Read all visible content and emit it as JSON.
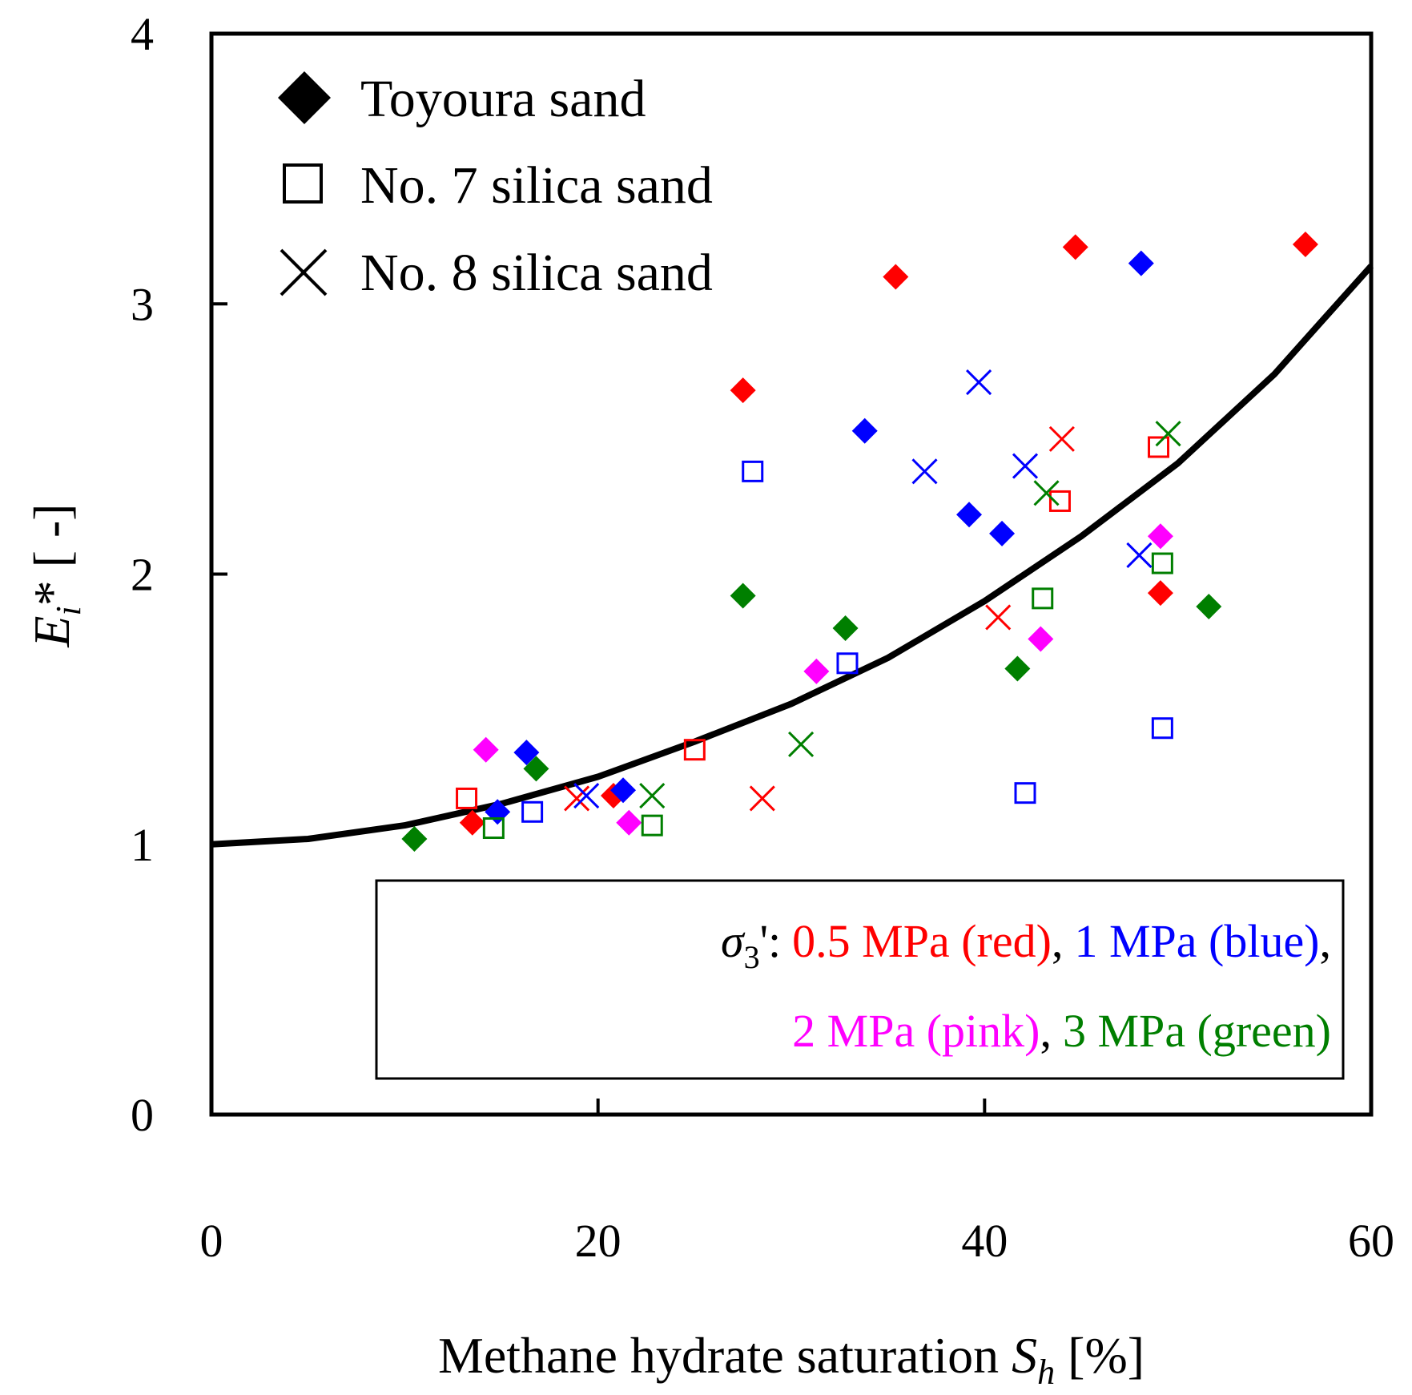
{
  "chart_data": {
    "type": "scatter",
    "xlabel": "Methane hydrate saturation",
    "xlabel_symbol": "S",
    "xlabel_subscript": "h",
    "xlabel_unit": "[%]",
    "ylabel_symbol": "E",
    "ylabel_subscript": "i",
    "ylabel_suffix": "*",
    "ylabel_unit": "[ -]",
    "xlim": [
      0,
      60
    ],
    "ylim": [
      0,
      4
    ],
    "xticks": [
      0,
      20,
      40,
      60
    ],
    "xtick_labels": [
      "0",
      "20",
      "40",
      "60"
    ],
    "yticks": [
      0,
      1,
      2,
      3,
      4
    ],
    "ytick_labels": [
      "0",
      "1",
      "2",
      "3",
      "4"
    ],
    "legend": [
      {
        "marker": "diamond",
        "label": "Toyoura sand"
      },
      {
        "marker": "square",
        "label": "No. 7 silica sand"
      },
      {
        "marker": "cross",
        "label": "No. 8 silica sand"
      }
    ],
    "note": {
      "prefix": "σ",
      "prefix_subscript": "3",
      "prefix_suffix": "':",
      "lines": [
        [
          {
            "text": "0.5 MPa (red)",
            "color": "#ff0000"
          },
          {
            "text": ",",
            "color": "#000000"
          },
          {
            "text": "1 MPa (blue)",
            "color": "#0000ff"
          },
          {
            "text": ",",
            "color": "#000000"
          }
        ],
        [
          {
            "text": "2 MPa (pink)",
            "color": "#ff00ff"
          },
          {
            "text": ",",
            "color": "#000000"
          },
          {
            "text": "3 MPa (green)",
            "color": "#007f00"
          }
        ]
      ]
    },
    "colors": {
      "red": "#ff0000",
      "blue": "#0000ff",
      "pink": "#ff00ff",
      "green": "#007f00",
      "curve": "#000000"
    },
    "curve": {
      "name": "fitted curve",
      "x": [
        0,
        5,
        10,
        15,
        20,
        25,
        30,
        35,
        40,
        45,
        50,
        55,
        60
      ],
      "y": [
        1.0,
        1.02,
        1.07,
        1.15,
        1.25,
        1.38,
        1.52,
        1.69,
        1.9,
        2.14,
        2.41,
        2.74,
        3.14
      ]
    },
    "series": [
      {
        "name": "Toyoura sand, 0.5 MPa",
        "marker": "diamond",
        "color": "red",
        "points": [
          [
            13.5,
            1.08
          ],
          [
            20.8,
            1.18
          ],
          [
            27.5,
            2.68
          ],
          [
            35.4,
            3.1
          ],
          [
            44.7,
            3.21
          ],
          [
            49.1,
            1.93
          ],
          [
            56.6,
            3.22
          ]
        ]
      },
      {
        "name": "Toyoura sand, 1 MPa",
        "marker": "diamond",
        "color": "blue",
        "points": [
          [
            14.8,
            1.12
          ],
          [
            16.3,
            1.34
          ],
          [
            21.3,
            1.2
          ],
          [
            33.8,
            2.53
          ],
          [
            39.2,
            2.22
          ],
          [
            40.9,
            2.15
          ],
          [
            48.1,
            3.15
          ]
        ]
      },
      {
        "name": "Toyoura sand, 2 MPa",
        "marker": "diamond",
        "color": "pink",
        "points": [
          [
            14.2,
            1.35
          ],
          [
            21.6,
            1.08
          ],
          [
            31.3,
            1.64
          ],
          [
            42.9,
            1.76
          ],
          [
            49.1,
            2.14
          ]
        ]
      },
      {
        "name": "Toyoura sand, 3 MPa",
        "marker": "diamond",
        "color": "green",
        "points": [
          [
            10.5,
            1.02
          ],
          [
            16.8,
            1.28
          ],
          [
            27.5,
            1.92
          ],
          [
            32.8,
            1.8
          ],
          [
            41.7,
            1.65
          ],
          [
            51.6,
            1.88
          ]
        ]
      },
      {
        "name": "No. 7 silica sand, 0.5 MPa",
        "marker": "square",
        "color": "red",
        "points": [
          [
            13.2,
            1.17
          ],
          [
            25.0,
            1.35
          ],
          [
            43.9,
            2.27
          ],
          [
            49.0,
            2.47
          ]
        ]
      },
      {
        "name": "No. 7 silica sand, 1 MPa",
        "marker": "square",
        "color": "blue",
        "points": [
          [
            16.6,
            1.12
          ],
          [
            28.0,
            2.38
          ],
          [
            32.9,
            1.67
          ],
          [
            42.1,
            1.19
          ],
          [
            49.2,
            1.43
          ]
        ]
      },
      {
        "name": "No. 7 silica sand, 3 MPa",
        "marker": "square",
        "color": "green",
        "points": [
          [
            14.6,
            1.06
          ],
          [
            22.8,
            1.07
          ],
          [
            43.0,
            1.91
          ],
          [
            49.2,
            2.04
          ]
        ]
      },
      {
        "name": "No. 8 silica sand, 0.5 MPa",
        "marker": "cross",
        "color": "red",
        "points": [
          [
            18.9,
            1.17
          ],
          [
            28.5,
            1.17
          ],
          [
            40.7,
            1.84
          ],
          [
            44.0,
            2.5
          ]
        ]
      },
      {
        "name": "No. 8 silica sand, 1 MPa",
        "marker": "cross",
        "color": "blue",
        "points": [
          [
            19.4,
            1.18
          ],
          [
            36.9,
            2.38
          ],
          [
            39.7,
            2.71
          ],
          [
            42.1,
            2.4
          ],
          [
            48.0,
            2.07
          ]
        ]
      },
      {
        "name": "No. 8 silica sand, 3 MPa",
        "marker": "cross",
        "color": "green",
        "points": [
          [
            22.8,
            1.18
          ],
          [
            30.5,
            1.37
          ],
          [
            43.2,
            2.3
          ],
          [
            49.5,
            2.52
          ]
        ]
      }
    ]
  }
}
